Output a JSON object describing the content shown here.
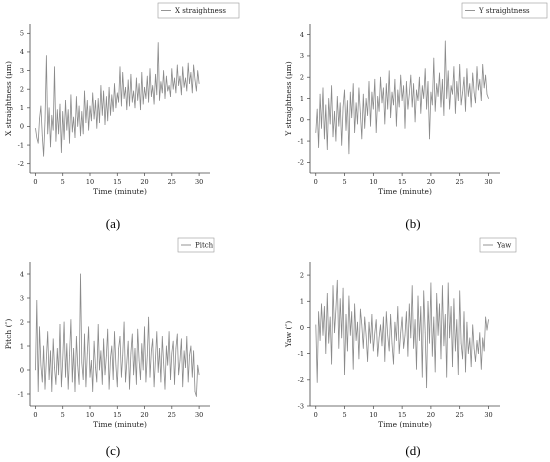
{
  "chart_data": [
    {
      "type": "line",
      "panel_label": "(a)",
      "xlabel": "Time (minute)",
      "ylabel": "X straightness (μm)",
      "xlim": [
        -1,
        32
      ],
      "ylim": [
        -2.5,
        5.5
      ],
      "xticks": [
        0,
        5,
        10,
        15,
        20,
        25,
        30
      ],
      "yticks": [
        -2,
        -1,
        0,
        1,
        2,
        3,
        4,
        5
      ],
      "grid": false,
      "legend_position": "top-right",
      "series": [
        {
          "name": "X straightness",
          "x": [
            0,
            0.25,
            0.5,
            0.75,
            1,
            1.25,
            1.5,
            1.75,
            2,
            2.25,
            2.5,
            2.75,
            3,
            3.25,
            3.5,
            3.75,
            4,
            4.25,
            4.5,
            4.75,
            5,
            5.25,
            5.5,
            5.75,
            6,
            6.25,
            6.5,
            6.75,
            7,
            7.25,
            7.5,
            7.75,
            8,
            8.25,
            8.5,
            8.75,
            9,
            9.25,
            9.5,
            9.75,
            10,
            10.25,
            10.5,
            10.75,
            11,
            11.25,
            11.5,
            11.75,
            12,
            12.25,
            12.5,
            12.75,
            13,
            13.25,
            13.5,
            13.75,
            14,
            14.25,
            14.5,
            14.75,
            15,
            15.25,
            15.5,
            15.75,
            16,
            16.25,
            16.5,
            16.75,
            17,
            17.25,
            17.5,
            17.75,
            18,
            18.25,
            18.5,
            18.75,
            19,
            19.25,
            19.5,
            19.75,
            20,
            20.25,
            20.5,
            20.75,
            21,
            21.25,
            21.5,
            21.75,
            22,
            22.25,
            22.5,
            22.75,
            23,
            23.25,
            23.5,
            23.75,
            24,
            24.25,
            24.5,
            24.75,
            25,
            25.25,
            25.5,
            25.75,
            26,
            26.25,
            26.5,
            26.75,
            27,
            27.25,
            27.5,
            27.75,
            28,
            28.25,
            28.5,
            28.75,
            29,
            29.25,
            29.5,
            29.75,
            30
          ],
          "y": [
            -0.1,
            -0.6,
            -0.9,
            0.4,
            1.1,
            -0.5,
            -1.6,
            0.3,
            3.8,
            -0.4,
            1.0,
            -1.1,
            0.6,
            -0.2,
            3.2,
            -0.8,
            0.9,
            -0.4,
            1.2,
            -1.4,
            0.8,
            -0.7,
            1.4,
            -0.2,
            0.9,
            -0.9,
            1.7,
            -0.3,
            0.5,
            -0.6,
            1.6,
            0.0,
            1.1,
            -0.5,
            0.8,
            -0.4,
            1.9,
            0.2,
            1.4,
            -0.2,
            1.1,
            0.3,
            1.8,
            0.4,
            1.4,
            -0.1,
            1.5,
            0.2,
            2.2,
            0.6,
            1.9,
            0.1,
            1.6,
            0.3,
            2.1,
            0.6,
            1.7,
            0.8,
            2.3,
            1.0,
            1.8,
            1.3,
            3.2,
            1.1,
            2.9,
            1.5,
            2.1,
            0.9,
            2.5,
            1.1,
            2.8,
            1.3,
            1.9,
            1.0,
            2.6,
            1.4,
            2.3,
            0.9,
            2.9,
            1.2,
            2.1,
            1.5,
            2.7,
            1.3,
            3.1,
            1.6,
            2.2,
            1.2,
            2.8,
            1.7,
            4.5,
            1.4,
            2.4,
            1.8,
            3.0,
            1.5,
            2.7,
            1.9,
            2.2,
            1.6,
            3.1,
            2.0,
            2.6,
            1.8,
            3.3,
            2.2,
            2.7,
            1.7,
            3.2,
            2.1,
            2.6,
            1.9,
            3.4,
            2.3,
            2.9,
            1.8,
            3.3,
            2.5,
            1.9,
            3.0,
            2.3
          ]
        }
      ]
    },
    {
      "type": "line",
      "panel_label": "(b)",
      "xlabel": "Time (minute)",
      "ylabel": "Y straightness (μm)",
      "xlim": [
        -1,
        32
      ],
      "ylim": [
        -2.5,
        4.5
      ],
      "xticks": [
        0,
        5,
        10,
        15,
        20,
        25,
        30
      ],
      "yticks": [
        -2,
        -1,
        0,
        1,
        2,
        3,
        4
      ],
      "grid": false,
      "legend_position": "top-right",
      "series": [
        {
          "name": "Y straightness",
          "x": [
            0,
            0.25,
            0.5,
            0.75,
            1,
            1.25,
            1.5,
            1.75,
            2,
            2.25,
            2.5,
            2.75,
            3,
            3.25,
            3.5,
            3.75,
            4,
            4.25,
            4.5,
            4.75,
            5,
            5.25,
            5.5,
            5.75,
            6,
            6.25,
            6.5,
            6.75,
            7,
            7.25,
            7.5,
            7.75,
            8,
            8.25,
            8.5,
            8.75,
            9,
            9.25,
            9.5,
            9.75,
            10,
            10.25,
            10.5,
            10.75,
            11,
            11.25,
            11.5,
            11.75,
            12,
            12.25,
            12.5,
            12.75,
            13,
            13.25,
            13.5,
            13.75,
            14,
            14.25,
            14.5,
            14.75,
            15,
            15.25,
            15.5,
            15.75,
            16,
            16.25,
            16.5,
            16.75,
            17,
            17.25,
            17.5,
            17.75,
            18,
            18.25,
            18.5,
            18.75,
            19,
            19.25,
            19.5,
            19.75,
            20,
            20.25,
            20.5,
            20.75,
            21,
            21.25,
            21.5,
            21.75,
            22,
            22.25,
            22.5,
            22.75,
            23,
            23.25,
            23.5,
            23.75,
            24,
            24.25,
            24.5,
            24.75,
            25,
            25.25,
            25.5,
            25.75,
            26,
            26.25,
            26.5,
            26.75,
            27,
            27.25,
            27.5,
            27.75,
            28,
            28.25,
            28.5,
            28.75,
            29,
            29.25,
            29.5,
            29.75,
            30
          ],
          "y": [
            -0.6,
            0.5,
            -1.3,
            1.2,
            -0.4,
            1.5,
            -0.9,
            0.7,
            -1.4,
            1.0,
            -0.2,
            1.6,
            -0.8,
            0.4,
            -1.0,
            1.1,
            -0.3,
            0.8,
            -1.2,
            0.6,
            1.4,
            -0.5,
            0.9,
            -1.6,
            1.3,
            0.1,
            1.7,
            -0.6,
            0.8,
            -0.2,
            1.5,
            0.3,
            -0.9,
            1.2,
            -0.4,
            1.0,
            0.2,
            1.8,
            -0.3,
            1.3,
            0.5,
            1.9,
            -0.6,
            1.1,
            0.4,
            2.0,
            0.8,
            1.5,
            -0.2,
            1.7,
            0.5,
            2.3,
            0.1,
            1.3,
            0.7,
            1.9,
            -0.3,
            1.4,
            0.6,
            2.1,
            0.9,
            1.6,
            -0.4,
            1.8,
            0.5,
            1.2,
            2.1,
            0.6,
            1.7,
            -0.1,
            1.4,
            0.9,
            2.0,
            0.3,
            1.6,
            1.0,
            2.4,
            0.5,
            1.8,
            -0.9,
            1.3,
            0.7,
            2.9,
            0.4,
            1.7,
            1.1,
            2.2,
            0.6,
            1.9,
            0.2,
            3.7,
            1.0,
            2.3,
            0.5,
            1.6,
            1.2,
            2.5,
            0.3,
            1.8,
            0.9,
            2.6,
            0.7,
            1.3,
            2.0,
            0.4,
            2.4,
            1.1,
            1.7,
            0.6,
            2.2,
            1.3,
            0.8,
            2.5,
            1.4,
            1.9,
            0.9,
            2.6,
            1.5,
            2.1,
            1.2,
            1.0
          ]
        }
      ]
    },
    {
      "type": "line",
      "panel_label": "(c)",
      "xlabel": "Time (minute)",
      "ylabel": "Pitch (″)",
      "xlim": [
        -1,
        32
      ],
      "ylim": [
        -1.5,
        4.5
      ],
      "xticks": [
        0,
        5,
        10,
        15,
        20,
        25,
        30
      ],
      "yticks": [
        -1,
        0,
        1,
        2,
        3,
        4
      ],
      "grid": false,
      "legend_position": "top-right",
      "series": [
        {
          "name": "Pitch",
          "x": [
            0,
            0.25,
            0.5,
            0.75,
            1,
            1.25,
            1.5,
            1.75,
            2,
            2.25,
            2.5,
            2.75,
            3,
            3.25,
            3.5,
            3.75,
            4,
            4.25,
            4.5,
            4.75,
            5,
            5.25,
            5.5,
            5.75,
            6,
            6.25,
            6.5,
            6.75,
            7,
            7.25,
            7.5,
            7.75,
            8,
            8.25,
            8.5,
            8.75,
            9,
            9.25,
            9.5,
            9.75,
            10,
            10.25,
            10.5,
            10.75,
            11,
            11.25,
            11.5,
            11.75,
            12,
            12.25,
            12.5,
            12.75,
            13,
            13.25,
            13.5,
            13.75,
            14,
            14.25,
            14.5,
            14.75,
            15,
            15.25,
            15.5,
            15.75,
            16,
            16.25,
            16.5,
            16.75,
            17,
            17.25,
            17.5,
            17.75,
            18,
            18.25,
            18.5,
            18.75,
            19,
            19.25,
            19.5,
            19.75,
            20,
            20.25,
            20.5,
            20.75,
            21,
            21.25,
            21.5,
            21.75,
            22,
            22.25,
            22.5,
            22.75,
            23,
            23.25,
            23.5,
            23.75,
            24,
            24.25,
            24.5,
            24.75,
            25,
            25.25,
            25.5,
            25.75,
            26,
            26.25,
            26.5,
            26.75,
            27,
            27.25,
            27.5,
            27.75,
            28,
            28.25,
            28.5,
            28.75,
            29,
            29.25,
            29.5,
            29.75,
            30
          ],
          "y": [
            0.0,
            2.9,
            -0.9,
            1.8,
            0.2,
            -0.5,
            1.0,
            -0.8,
            0.5,
            1.6,
            -0.4,
            0.8,
            -0.9,
            1.3,
            0.1,
            -0.6,
            0.9,
            -0.2,
            1.9,
            -0.7,
            0.4,
            2.0,
            -0.3,
            1.1,
            -0.8,
            0.6,
            2.1,
            -0.5,
            0.9,
            -0.9,
            1.4,
            0.2,
            -0.6,
            4.0,
            0.3,
            -0.4,
            1.5,
            -0.7,
            0.7,
            1.8,
            -0.3,
            0.4,
            -0.9,
            1.2,
            0.1,
            -0.5,
            1.9,
            0.0,
            0.8,
            -0.6,
            1.3,
            -0.2,
            0.6,
            1.7,
            -0.8,
            0.5,
            1.0,
            -0.4,
            1.6,
            0.2,
            -0.7,
            0.9,
            1.4,
            -0.3,
            0.6,
            2.0,
            -0.5,
            0.3,
            1.2,
            -0.8,
            0.7,
            1.5,
            -0.2,
            0.9,
            -0.6,
            1.7,
            0.4,
            -0.4,
            1.1,
            0.0,
            1.8,
            -0.5,
            0.6,
            2.2,
            -0.3,
            0.8,
            1.3,
            -0.7,
            0.5,
            1.6,
            -0.1,
            0.9,
            -0.5,
            1.4,
            0.3,
            -0.8,
            1.0,
            0.2,
            1.6,
            -0.4,
            0.7,
            1.2,
            -0.6,
            0.9,
            1.5,
            -0.2,
            0.4,
            1.3,
            -0.7,
            0.8,
            0.1,
            1.4,
            -0.5,
            0.6,
            1.0,
            -0.3,
            0.8,
            -0.9,
            -1.1,
            0.2,
            -0.2
          ]
        }
      ]
    },
    {
      "type": "line",
      "panel_label": "(d)",
      "xlabel": "Time (minute)",
      "ylabel": "Yaw (″)",
      "xlim": [
        -1,
        32
      ],
      "ylim": [
        -3,
        2.5
      ],
      "xticks": [
        0,
        5,
        10,
        15,
        20,
        25,
        30
      ],
      "yticks": [
        -3,
        -2,
        -1,
        0,
        1,
        2
      ],
      "grid": false,
      "legend_position": "top-right",
      "series": [
        {
          "name": "Yaw",
          "x": [
            0,
            0.25,
            0.5,
            0.75,
            1,
            1.25,
            1.5,
            1.75,
            2,
            2.25,
            2.5,
            2.75,
            3,
            3.25,
            3.5,
            3.75,
            4,
            4.25,
            4.5,
            4.75,
            5,
            5.25,
            5.5,
            5.75,
            6,
            6.25,
            6.5,
            6.75,
            7,
            7.25,
            7.5,
            7.75,
            8,
            8.25,
            8.5,
            8.75,
            9,
            9.25,
            9.5,
            9.75,
            10,
            10.25,
            10.5,
            10.75,
            11,
            11.25,
            11.5,
            11.75,
            12,
            12.25,
            12.5,
            12.75,
            13,
            13.25,
            13.5,
            13.75,
            14,
            14.25,
            14.5,
            14.75,
            15,
            15.25,
            15.5,
            15.75,
            16,
            16.25,
            16.5,
            16.75,
            17,
            17.25,
            17.5,
            17.75,
            18,
            18.25,
            18.5,
            18.75,
            19,
            19.25,
            19.5,
            19.75,
            20,
            20.25,
            20.5,
            20.75,
            21,
            21.25,
            21.5,
            21.75,
            22,
            22.25,
            22.5,
            22.75,
            23,
            23.25,
            23.5,
            23.75,
            24,
            24.25,
            24.5,
            24.75,
            25,
            25.25,
            25.5,
            25.75,
            26,
            26.25,
            26.5,
            26.75,
            27,
            27.25,
            27.5,
            27.75,
            28,
            28.25,
            28.5,
            28.75,
            29,
            29.25,
            29.5,
            29.75,
            30
          ],
          "y": [
            0.1,
            -2.1,
            0.6,
            -0.5,
            0.9,
            -0.3,
            0.8,
            -1.0,
            1.3,
            -0.6,
            0.4,
            -1.4,
            1.6,
            -0.2,
            0.7,
            1.8,
            -0.8,
            1.1,
            -0.4,
            1.5,
            -1.8,
            0.5,
            -0.9,
            1.2,
            -0.3,
            0.6,
            -1.6,
            0.9,
            -0.5,
            0.2,
            -1.2,
            0.7,
            0.1,
            -0.8,
            0.4,
            -0.3,
            -1.3,
            0.2,
            -0.6,
            0.5,
            -0.9,
            -0.2,
            0.3,
            -1.1,
            -0.4,
            0.1,
            -0.7,
            0.4,
            -1.3,
            0.6,
            -0.3,
            -0.9,
            0.5,
            -0.6,
            -1.4,
            0.2,
            -0.5,
            0.8,
            -1.0,
            -0.2,
            0.4,
            -0.8,
            -0.3,
            0.6,
            -1.1,
            0.9,
            -0.4,
            1.6,
            -0.8,
            0.3,
            -1.6,
            1.2,
            -0.5,
            0.8,
            -1.9,
            1.4,
            -0.2,
            -2.3,
            1.0,
            -0.6,
            1.7,
            -1.1,
            0.4,
            -1.7,
            1.3,
            -0.3,
            0.9,
            -1.2,
            1.6,
            -0.7,
            0.5,
            -1.9,
            1.7,
            -0.4,
            0.8,
            -1.5,
            1.1,
            -0.9,
            0.3,
            -1.8,
            1.4,
            -0.6,
            -1.2,
            0.6,
            -1.7,
            0.2,
            -1.0,
            -0.4,
            -1.5,
            0.1,
            -0.8,
            -1.3,
            -0.5,
            -1.0,
            -0.2,
            -1.6,
            -0.4,
            -0.9,
            0.4,
            -0.1,
            0.3
          ]
        }
      ]
    }
  ]
}
